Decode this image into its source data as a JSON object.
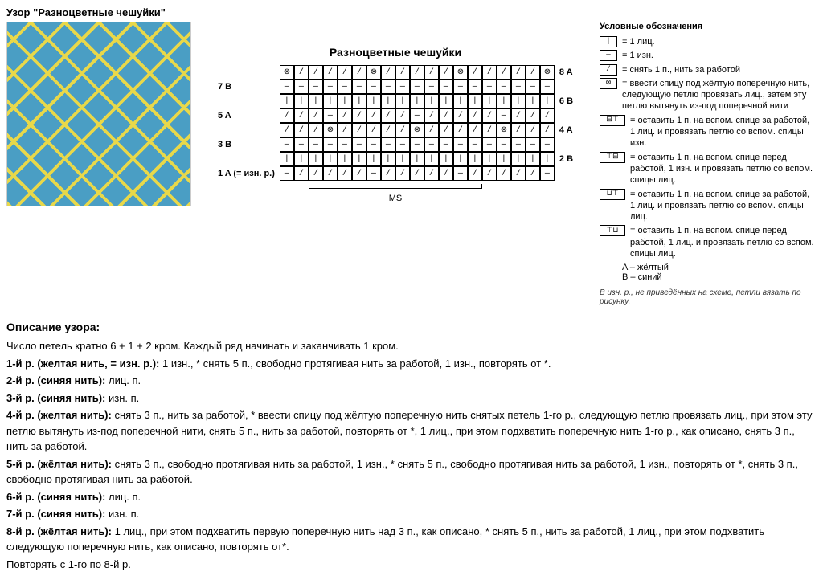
{
  "pageTitle": "Узор \"Разноцветные чешуйки\"",
  "chartTitle": "Разноцветные чешуйки",
  "chart": {
    "leftLabels": [
      "",
      "7 B",
      "",
      "5 A",
      "",
      "3 B",
      "",
      "1 A (= изн. р.)"
    ],
    "rightLabels": [
      "8 A",
      "",
      "6 B",
      "",
      "4 A",
      "",
      "2 B",
      ""
    ],
    "rows": [
      [
        "⊗",
        "/",
        "/",
        "/",
        "/",
        "/",
        "⊗",
        "/",
        "/",
        "/",
        "/",
        "/",
        "⊗",
        "/",
        "/",
        "/",
        "/",
        "/",
        "⊗"
      ],
      [
        "—",
        "—",
        "—",
        "—",
        "—",
        "—",
        "—",
        "—",
        "—",
        "—",
        "—",
        "—",
        "—",
        "—",
        "—",
        "—",
        "—",
        "—",
        "—"
      ],
      [
        "|",
        "|",
        "|",
        "|",
        "|",
        "|",
        "|",
        "|",
        "|",
        "|",
        "|",
        "|",
        "|",
        "|",
        "|",
        "|",
        "|",
        "|",
        "|"
      ],
      [
        "/",
        "/",
        "/",
        "—",
        "/",
        "/",
        "/",
        "/",
        "/",
        "—",
        "/",
        "/",
        "/",
        "/",
        "/",
        "—",
        "/",
        "/",
        "/"
      ],
      [
        "/",
        "/",
        "/",
        "⊗",
        "/",
        "/",
        "/",
        "/",
        "/",
        "⊗",
        "/",
        "/",
        "/",
        "/",
        "/",
        "⊗",
        "/",
        "/",
        "/"
      ],
      [
        "—",
        "—",
        "—",
        "—",
        "—",
        "—",
        "—",
        "—",
        "—",
        "—",
        "—",
        "—",
        "—",
        "—",
        "—",
        "—",
        "—",
        "—",
        "—"
      ],
      [
        "|",
        "|",
        "|",
        "|",
        "|",
        "|",
        "|",
        "|",
        "|",
        "|",
        "|",
        "|",
        "|",
        "|",
        "|",
        "|",
        "|",
        "|",
        "|"
      ],
      [
        "—",
        "/",
        "/",
        "/",
        "/",
        "/",
        "—",
        "/",
        "/",
        "/",
        "/",
        "/",
        "—",
        "/",
        "/",
        "/",
        "/",
        "/",
        "—"
      ]
    ],
    "msLabel": "MS"
  },
  "legend": {
    "title": "Условные обозначения",
    "items": [
      {
        "sym": "|",
        "txt": "= 1 лиц."
      },
      {
        "sym": "—",
        "txt": "= 1 изн."
      },
      {
        "sym": "/",
        "txt": "= снять 1 п., нить за работой"
      },
      {
        "sym": "⊗",
        "txt": "= ввести спицу под жёлтую поперечную нить, следующую петлю провязать лиц., затем эту петлю вытянуть из-под поперечной нити"
      },
      {
        "sym": "⊟⊤",
        "txt": "= оставить 1 п. на вспом. спице за работой, 1 лиц. и провязать петлю со вспом. спицы изн.",
        "wide": true
      },
      {
        "sym": "⊤⊟",
        "txt": "= оставить 1 п. на вспом. спице перед работой, 1 изн. и провязать петлю со вспом. спицы лиц.",
        "wide": true
      },
      {
        "sym": "⊔⊤",
        "txt": "= оставить 1 п. на вспом. спице за работой, 1 лиц. и провязать петлю со вспом. спицы лиц.",
        "wide": true
      },
      {
        "sym": "⊤⊔",
        "txt": "= оставить 1 п. на вспом. спице перед работой, 1 лиц. и провязать петлю со вспом. спицы лиц.",
        "wide": true
      }
    ],
    "colorA": "A – жёлтый",
    "colorB": "B – синий",
    "note": "В изн. р., не приведённых на схеме, петли вязать по рисунку."
  },
  "descTitle": "Описание узора:",
  "desc": [
    "Число петель кратно 6 + 1 + 2 кром. Каждый ряд начинать и заканчивать 1 кром.",
    "<b>1-й р. (желтая нить, = изн. р.):</b> 1 изн., * снять 5 п., свободно протягивая нить за работой, 1 изн., повторять от *.",
    "<b>2-й р. (синяя нить):</b> лиц. п.",
    "<b>3-й р. (синяя нить):</b> изн. п.",
    "<b>4-й р. (желтая нить):</b> снять 3 п., нить за работой, * ввести спицу под жёлтую поперечную нить снятых петель 1-го р., следующую петлю провязать лиц., при этом эту петлю вытянуть из-под поперечной нити, снять 5 п., нить за работой, повторять от *, 1 лиц., при этом подхватить поперечную нить 1-го р., как описано, снять 3 п., нить за работой.",
    "<b>5-й р. (жёлтая нить):</b> снять 3 п., свободно протягивая нить за работой, 1 изн., * снять 5 п., свободно протягивая нить за работой, 1 изн., повторять от *, снять 3 п., свободно протягивая нить за работой.",
    "<b>6-й р. (синяя нить):</b> лиц. п.",
    "<b>7-й р. (синяя нить):</b> изн. п.",
    "<b>8-й р. (жёлтая нить):</b> 1 лиц., при этом подхватить первую поперечную нить над 3 п., как описано, * снять 5 п., нить за работой, 1 лиц., при этом подхватить следующую поперечную нить, как описано, повторять от*.",
    "Повторять с 1-го по 8-й р."
  ]
}
